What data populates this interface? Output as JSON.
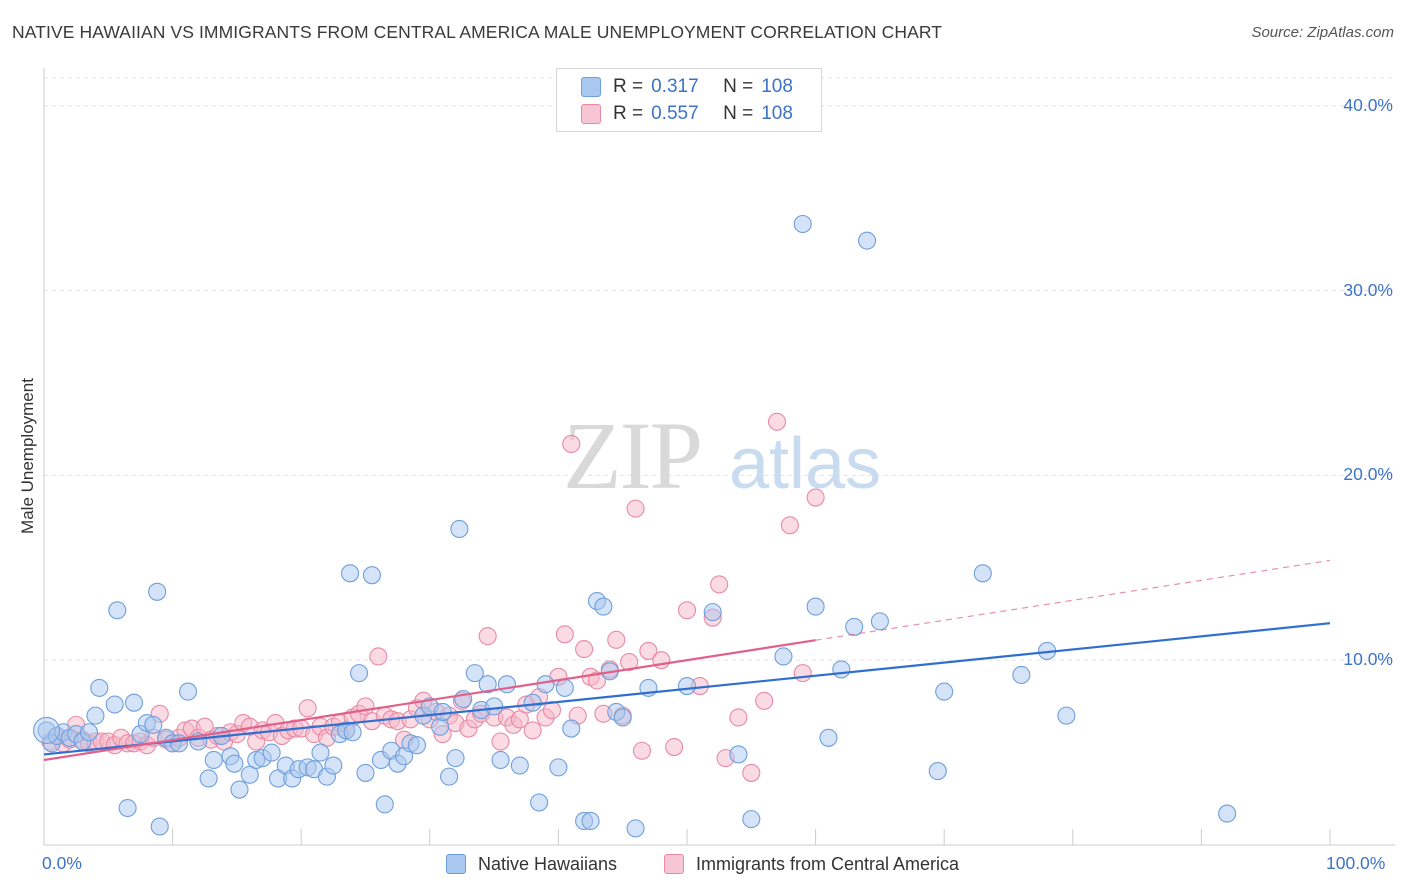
{
  "title": "NATIVE HAWAIIAN VS IMMIGRANTS FROM CENTRAL AMERICA MALE UNEMPLOYMENT CORRELATION CHART",
  "source": "Source: ZipAtlas.com",
  "watermark": {
    "zip": "ZIP",
    "atlas": "atlas"
  },
  "legend": {
    "rows": [
      {
        "r_label": "R = ",
        "r_value": "0.317",
        "n_label": "N = ",
        "n_value": "108"
      },
      {
        "r_label": "R = ",
        "r_value": "0.557",
        "n_label": "N = ",
        "n_value": "108"
      }
    ]
  },
  "bottom_legend": [
    "Native Hawaiians",
    "Immigrants from Central America"
  ],
  "colors": {
    "blue_fill": "#a9c8f0",
    "blue_stroke": "#6f9fdc",
    "blue_line": "#2f6fcf",
    "pink_fill": "#f6b6c8",
    "pink_stroke": "#e88aa6",
    "pink_line": "#e0608a",
    "grid": "#e3e3e3",
    "axis_text": "#3c73c9"
  },
  "chart_data": {
    "type": "scatter",
    "title": "NATIVE HAWAIIAN VS IMMIGRANTS FROM CENTRAL AMERICA MALE UNEMPLOYMENT CORRELATION CHART",
    "xlabel": "",
    "ylabel": "Male Unemployment",
    "xlim": [
      0,
      100
    ],
    "ylim": [
      0,
      41.5
    ],
    "x_tick_labels": [
      "0.0%",
      "100.0%"
    ],
    "y_ticks": [
      10,
      20,
      30,
      40
    ],
    "y_tick_labels": [
      "10.0%",
      "20.0%",
      "30.0%",
      "40.0%"
    ],
    "grid": true,
    "legend_position": "top-center",
    "series": [
      {
        "name": "Native Hawaiians",
        "R": 0.317,
        "N": 108,
        "trend": {
          "x0": 0,
          "y0": 4.9,
          "x1": 100,
          "y1": 12.0,
          "dashed_from": null
        },
        "points": [
          [
            0.2,
            6.2
          ],
          [
            0.6,
            5.5
          ],
          [
            1.0,
            5.9
          ],
          [
            1.5,
            6.1
          ],
          [
            2.0,
            5.8
          ],
          [
            2.5,
            6.0
          ],
          [
            3.0,
            5.6
          ],
          [
            3.5,
            6.1
          ],
          [
            4.0,
            7.0
          ],
          [
            4.3,
            8.5
          ],
          [
            5.5,
            7.6
          ],
          [
            5.7,
            12.7
          ],
          [
            6.5,
            2.0
          ],
          [
            7.0,
            7.7
          ],
          [
            7.5,
            6.0
          ],
          [
            8.0,
            6.6
          ],
          [
            8.5,
            6.5
          ],
          [
            8.8,
            13.7
          ],
          [
            9.0,
            1.0
          ],
          [
            9.5,
            5.8
          ],
          [
            10.0,
            5.5
          ],
          [
            10.5,
            5.5
          ],
          [
            11.2,
            8.3
          ],
          [
            12.0,
            5.6
          ],
          [
            12.8,
            3.6
          ],
          [
            13.2,
            4.6
          ],
          [
            13.8,
            5.9
          ],
          [
            14.5,
            4.8
          ],
          [
            14.8,
            4.4
          ],
          [
            15.2,
            3.0
          ],
          [
            16.0,
            3.8
          ],
          [
            16.5,
            4.6
          ],
          [
            17.0,
            4.7
          ],
          [
            17.7,
            5.0
          ],
          [
            18.2,
            3.6
          ],
          [
            18.8,
            4.3
          ],
          [
            19.3,
            3.6
          ],
          [
            19.8,
            4.1
          ],
          [
            20.5,
            4.2
          ],
          [
            21.0,
            4.1
          ],
          [
            21.5,
            5.0
          ],
          [
            22.0,
            3.7
          ],
          [
            22.5,
            4.3
          ],
          [
            23.0,
            6.0
          ],
          [
            23.5,
            6.2
          ],
          [
            23.8,
            14.7
          ],
          [
            24.0,
            6.1
          ],
          [
            24.5,
            9.3
          ],
          [
            25.0,
            3.9
          ],
          [
            25.5,
            14.6
          ],
          [
            26.2,
            4.6
          ],
          [
            26.5,
            2.2
          ],
          [
            27.0,
            5.1
          ],
          [
            27.5,
            4.4
          ],
          [
            28.0,
            4.8
          ],
          [
            28.5,
            5.5
          ],
          [
            29.0,
            5.4
          ],
          [
            29.5,
            7.0
          ],
          [
            30.0,
            7.5
          ],
          [
            30.8,
            6.4
          ],
          [
            31.0,
            7.2
          ],
          [
            31.5,
            3.7
          ],
          [
            32.0,
            4.7
          ],
          [
            32.3,
            17.1
          ],
          [
            32.6,
            7.9
          ],
          [
            33.5,
            9.3
          ],
          [
            34.0,
            7.3
          ],
          [
            34.5,
            8.7
          ],
          [
            35.0,
            7.5
          ],
          [
            35.5,
            4.6
          ],
          [
            36.0,
            8.7
          ],
          [
            37.0,
            4.3
          ],
          [
            38.0,
            7.7
          ],
          [
            38.5,
            2.3
          ],
          [
            39.0,
            8.7
          ],
          [
            40.0,
            4.2
          ],
          [
            40.5,
            8.5
          ],
          [
            41.0,
            6.3
          ],
          [
            42.0,
            1.3
          ],
          [
            42.5,
            1.3
          ],
          [
            43.0,
            13.2
          ],
          [
            43.5,
            12.9
          ],
          [
            44.0,
            9.4
          ],
          [
            44.5,
            7.2
          ],
          [
            45.0,
            6.9
          ],
          [
            46.0,
            0.9
          ],
          [
            47.0,
            8.5
          ],
          [
            50.0,
            8.6
          ],
          [
            52.0,
            12.6
          ],
          [
            54.0,
            4.9
          ],
          [
            55.0,
            1.4
          ],
          [
            57.5,
            10.2
          ],
          [
            59.0,
            33.6
          ],
          [
            60.0,
            12.9
          ],
          [
            61.0,
            5.8
          ],
          [
            62.0,
            9.5
          ],
          [
            63.0,
            11.8
          ],
          [
            64.0,
            32.7
          ],
          [
            65.0,
            12.1
          ],
          [
            69.5,
            4.0
          ],
          [
            70.0,
            8.3
          ],
          [
            73.0,
            14.7
          ],
          [
            76.0,
            9.2
          ],
          [
            78.0,
            10.5
          ],
          [
            79.5,
            7.0
          ],
          [
            92.0,
            1.7
          ]
        ]
      },
      {
        "name": "Immigrants from Central America",
        "R": 0.557,
        "N": 108,
        "trend": {
          "x0": 0,
          "y0": 4.6,
          "x1": 100,
          "y1": 15.4,
          "dashed_from": 60
        },
        "points": [
          [
            0.5,
            5.6
          ],
          [
            1.0,
            5.9
          ],
          [
            1.5,
            5.5
          ],
          [
            2.0,
            5.7
          ],
          [
            2.5,
            6.5
          ],
          [
            3.0,
            5.7
          ],
          [
            3.5,
            5.5
          ],
          [
            4.0,
            5.6
          ],
          [
            4.5,
            5.6
          ],
          [
            5.0,
            5.6
          ],
          [
            5.5,
            5.4
          ],
          [
            6.0,
            5.8
          ],
          [
            6.5,
            5.5
          ],
          [
            7.0,
            5.5
          ],
          [
            7.5,
            5.6
          ],
          [
            8.0,
            5.4
          ],
          [
            8.5,
            5.8
          ],
          [
            9.0,
            7.1
          ],
          [
            9.5,
            5.7
          ],
          [
            10.0,
            5.5
          ],
          [
            10.5,
            5.8
          ],
          [
            11.0,
            6.2
          ],
          [
            11.5,
            6.3
          ],
          [
            12.0,
            5.8
          ],
          [
            12.5,
            6.4
          ],
          [
            13.0,
            5.7
          ],
          [
            13.5,
            5.9
          ],
          [
            14.0,
            5.6
          ],
          [
            14.5,
            6.1
          ],
          [
            15.0,
            6.0
          ],
          [
            15.5,
            6.6
          ],
          [
            16.0,
            6.4
          ],
          [
            16.5,
            5.6
          ],
          [
            17.0,
            6.2
          ],
          [
            17.5,
            6.1
          ],
          [
            18.0,
            6.6
          ],
          [
            18.5,
            5.9
          ],
          [
            19.0,
            6.2
          ],
          [
            19.5,
            6.3
          ],
          [
            20.0,
            6.3
          ],
          [
            20.5,
            7.4
          ],
          [
            21.0,
            6.0
          ],
          [
            21.5,
            6.4
          ],
          [
            22.0,
            5.8
          ],
          [
            22.5,
            6.4
          ],
          [
            23.0,
            6.6
          ],
          [
            23.5,
            6.2
          ],
          [
            24.0,
            6.9
          ],
          [
            24.5,
            7.1
          ],
          [
            25.0,
            7.5
          ],
          [
            25.5,
            6.7
          ],
          [
            26.0,
            10.2
          ],
          [
            26.5,
            7.0
          ],
          [
            27.0,
            6.8
          ],
          [
            27.5,
            6.7
          ],
          [
            28.0,
            5.7
          ],
          [
            28.5,
            6.8
          ],
          [
            29.0,
            7.4
          ],
          [
            29.5,
            7.8
          ],
          [
            30.0,
            6.8
          ],
          [
            30.5,
            7.2
          ],
          [
            31.0,
            6.0
          ],
          [
            31.5,
            7.0
          ],
          [
            32.0,
            6.6
          ],
          [
            32.5,
            7.8
          ],
          [
            33.0,
            6.3
          ],
          [
            33.5,
            6.8
          ],
          [
            34.0,
            7.1
          ],
          [
            34.5,
            11.3
          ],
          [
            35.0,
            6.9
          ],
          [
            35.5,
            5.6
          ],
          [
            36.0,
            6.9
          ],
          [
            36.5,
            6.5
          ],
          [
            37.0,
            6.8
          ],
          [
            37.5,
            7.6
          ],
          [
            38.0,
            6.2
          ],
          [
            38.5,
            8.0
          ],
          [
            39.0,
            6.9
          ],
          [
            39.5,
            7.3
          ],
          [
            40.0,
            9.1
          ],
          [
            40.5,
            11.4
          ],
          [
            41.0,
            21.7
          ],
          [
            41.5,
            7.0
          ],
          [
            42.0,
            10.6
          ],
          [
            42.5,
            9.1
          ],
          [
            43.0,
            8.9
          ],
          [
            43.5,
            7.1
          ],
          [
            44.0,
            9.5
          ],
          [
            44.5,
            11.1
          ],
          [
            45.0,
            7.0
          ],
          [
            45.5,
            9.9
          ],
          [
            46.0,
            18.2
          ],
          [
            46.5,
            5.1
          ],
          [
            47.0,
            10.5
          ],
          [
            48.0,
            10.0
          ],
          [
            49.0,
            5.3
          ],
          [
            50.0,
            12.7
          ],
          [
            51.0,
            8.6
          ],
          [
            52.0,
            12.3
          ],
          [
            52.5,
            14.1
          ],
          [
            53.0,
            4.7
          ],
          [
            54.0,
            6.9
          ],
          [
            55.0,
            3.9
          ],
          [
            56.0,
            7.8
          ],
          [
            57.0,
            22.9
          ],
          [
            58.0,
            17.3
          ],
          [
            59.0,
            9.3
          ],
          [
            60.0,
            18.8
          ]
        ]
      }
    ]
  }
}
